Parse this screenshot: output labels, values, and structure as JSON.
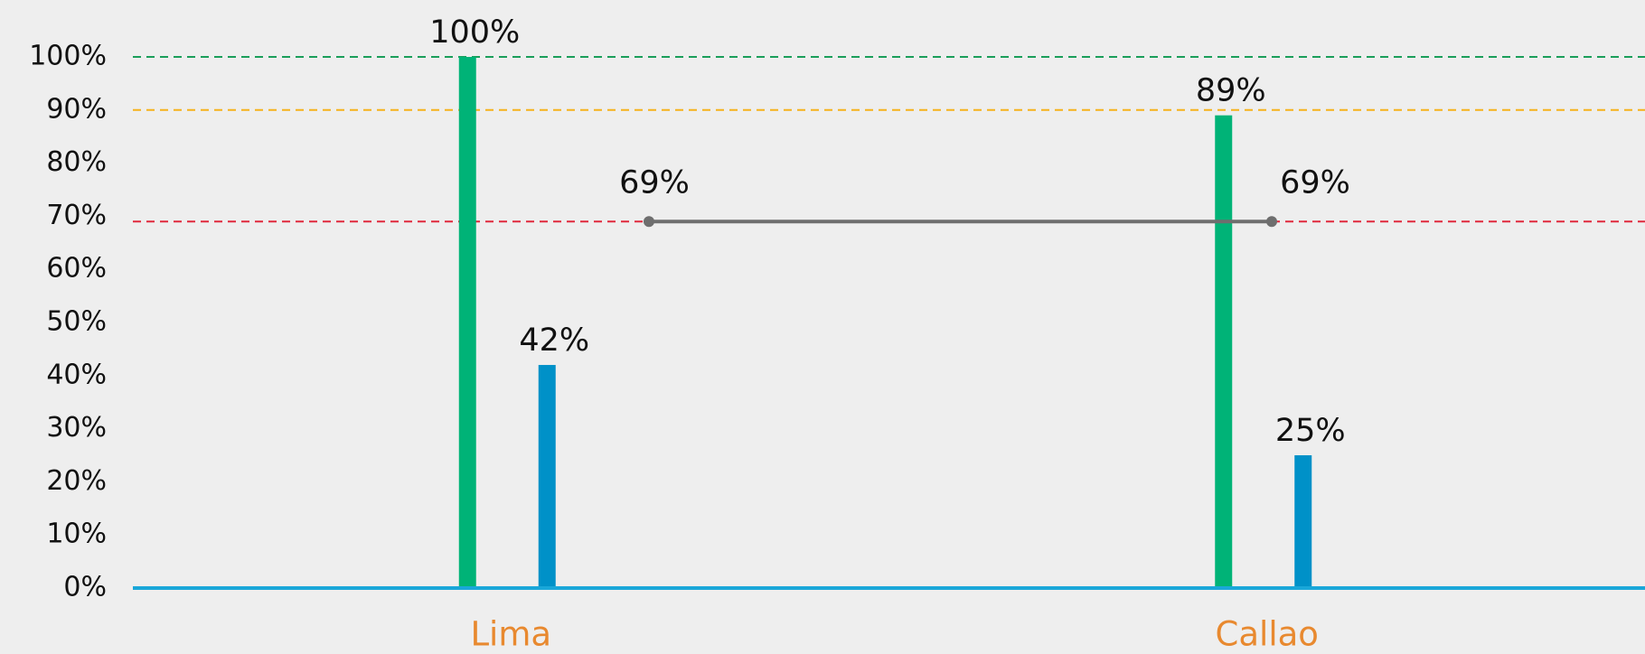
{
  "chart_data": {
    "type": "bar",
    "categories": [
      "Lima",
      "Callao"
    ],
    "series": [
      {
        "color": "#00b377",
        "values": [
          100,
          89
        ],
        "value_labels": [
          "100%",
          "89%"
        ]
      },
      {
        "color": "#0091c8",
        "values": [
          42,
          25
        ],
        "value_labels": [
          "42%",
          "25%"
        ]
      },
      {
        "type": "line",
        "color": "#6e6e6e",
        "values": [
          69,
          69
        ],
        "value_labels": [
          "69%",
          "69%"
        ]
      }
    ],
    "reference_lines": [
      {
        "value": 100,
        "color": "#1a9e5a"
      },
      {
        "value": 90,
        "color": "#f5b21b"
      },
      {
        "value": 69,
        "color": "#e0283c"
      }
    ],
    "ylim": [
      0,
      100
    ],
    "yticks": [
      {
        "value": 0,
        "label": "0%"
      },
      {
        "value": 10,
        "label": "10%"
      },
      {
        "value": 20,
        "label": "20%"
      },
      {
        "value": 30,
        "label": "30%"
      },
      {
        "value": 40,
        "label": "40%"
      },
      {
        "value": 50,
        "label": "50%"
      },
      {
        "value": 60,
        "label": "60%"
      },
      {
        "value": 70,
        "label": "70%"
      },
      {
        "value": 80,
        "label": "80%"
      },
      {
        "value": 90,
        "label": "90%"
      },
      {
        "value": 100,
        "label": "100%"
      }
    ],
    "axis_color": "#1aa7d9"
  }
}
